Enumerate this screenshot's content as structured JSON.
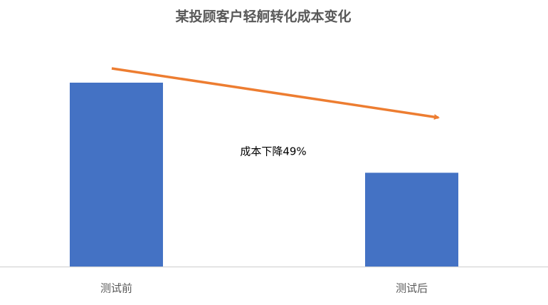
{
  "chart_data": {
    "type": "bar",
    "title": "某投顾客户轻舸转化成本变化",
    "categories": [
      "测试前",
      "测试后"
    ],
    "values": [
      100,
      51
    ],
    "color": "#4472c4",
    "ylim": [
      0,
      100
    ],
    "annotation": "成本下降49%",
    "arrow_color": "#ed7d31"
  }
}
